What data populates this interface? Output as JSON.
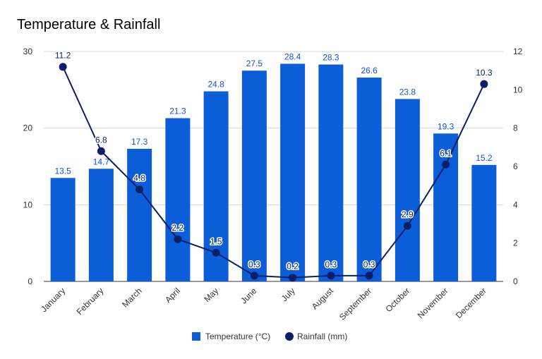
{
  "chart_data": {
    "type": "bar",
    "title": "Temperature & Rainfall",
    "categories": [
      "January",
      "February",
      "March",
      "April",
      "May",
      "June",
      "July",
      "August",
      "September",
      "October",
      "November",
      "December"
    ],
    "series": [
      {
        "name": "Temperature (°C)",
        "type": "bar",
        "axis": "left",
        "values": [
          13.5,
          14.7,
          17.3,
          21.3,
          24.8,
          27.5,
          28.4,
          28.3,
          26.6,
          23.8,
          19.3,
          15.2
        ],
        "labels": [
          "13.5",
          "14.7",
          "17.3",
          "21.3",
          "24.8",
          "27.5",
          "28.4",
          "28.3",
          "26.6",
          "23.8",
          "19.3",
          "15.2"
        ]
      },
      {
        "name": "Rainfall (mm)",
        "type": "line",
        "axis": "right",
        "values": [
          11.2,
          6.8,
          4.8,
          2.2,
          1.5,
          0.3,
          0.2,
          0.3,
          0.3,
          2.9,
          6.1,
          10.3
        ],
        "labels": [
          "11.2",
          "6.8",
          "4.8",
          "2.2",
          "1.5",
          "0.3",
          "0.2",
          "0.3",
          "0.3",
          "2.9",
          "6.1",
          "10.3"
        ]
      }
    ],
    "y_left": {
      "lim": [
        0,
        30
      ],
      "ticks": [
        "0",
        "10",
        "20",
        "30"
      ]
    },
    "y_right": {
      "lim": [
        0,
        12
      ],
      "ticks": [
        "0",
        "2",
        "4",
        "6",
        "8",
        "10",
        "12"
      ]
    },
    "grid": true,
    "legend_position": "bottom",
    "colors": {
      "bar": "#0b5ed7",
      "line": "#0b1f66",
      "grid": "#d9d9d9",
      "bar_label": "#1155cc"
    }
  }
}
